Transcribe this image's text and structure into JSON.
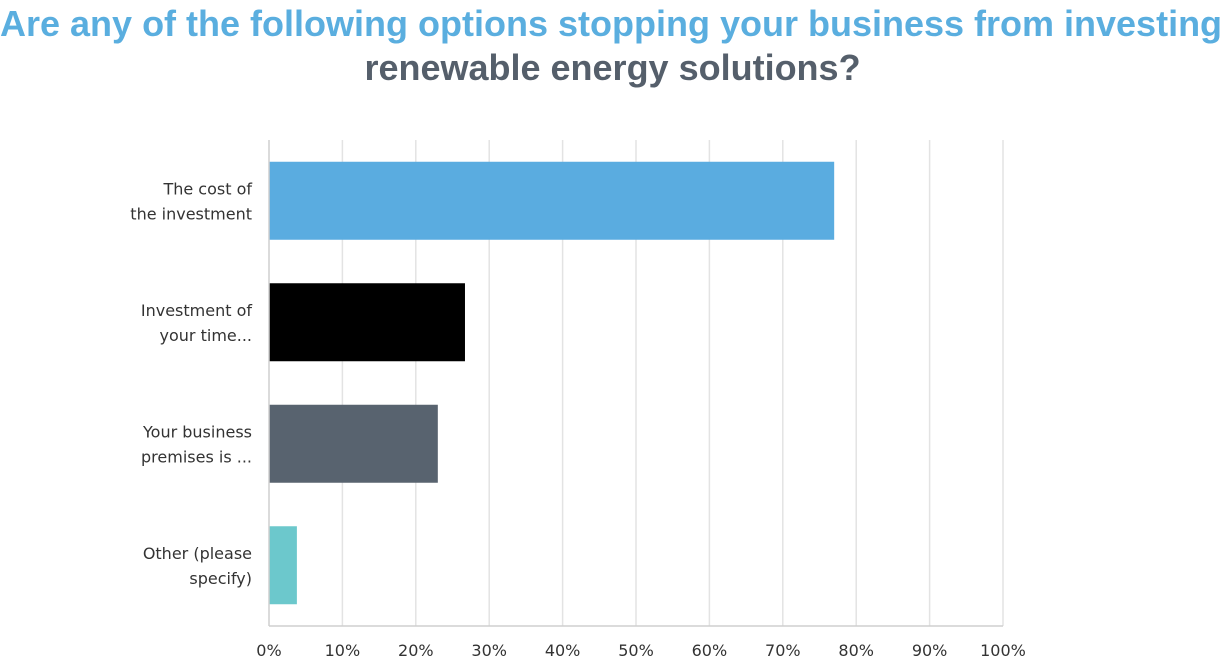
{
  "title_line1": "Are any of the following options stopping your business from investing in",
  "title_line2": "renewable energy solutions?",
  "chart_data": {
    "type": "bar",
    "orientation": "horizontal",
    "title": "Are any of the following options stopping your business from investing in renewable energy solutions?",
    "categories": [
      [
        "The cost of",
        "the investment"
      ],
      [
        "Investment of",
        "your time..."
      ],
      [
        "Your business",
        "premises is ..."
      ],
      [
        "Other (please",
        "specify)"
      ]
    ],
    "values": [
      77,
      26.7,
      23,
      3.8
    ],
    "colors": [
      "#5AACE0",
      "#000000",
      "#58636F",
      "#6CC8CC"
    ],
    "xlim": [
      0,
      100
    ],
    "xticks": [
      "0%",
      "10%",
      "20%",
      "30%",
      "40%",
      "50%",
      "60%",
      "70%",
      "80%",
      "90%",
      "100%"
    ],
    "grid": true
  }
}
